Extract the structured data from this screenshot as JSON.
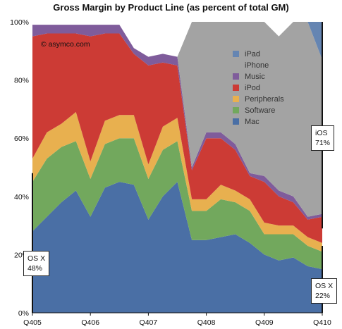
{
  "chart_data": {
    "type": "area",
    "stacked": true,
    "title": "Gross Margin by Product Line (as percent of total GM)",
    "ylim": [
      0,
      100
    ],
    "yticks": [
      0,
      20,
      40,
      60,
      80,
      100
    ],
    "ytick_labels": [
      "0%",
      "20%",
      "40%",
      "60%",
      "80%",
      "100%"
    ],
    "x_labels": [
      "Q405",
      "Q406",
      "Q407",
      "Q408",
      "Q409",
      "Q410"
    ],
    "x": [
      "Q405",
      "Q106",
      "Q206",
      "Q306",
      "Q406",
      "Q107",
      "Q207",
      "Q307",
      "Q407",
      "Q108",
      "Q208",
      "Q308",
      "Q408",
      "Q109",
      "Q209",
      "Q309",
      "Q409",
      "Q110",
      "Q210",
      "Q310",
      "Q410"
    ],
    "series": [
      {
        "name": "Mac",
        "color": "#4a6fa5",
        "values": [
          28,
          33,
          38,
          42,
          33,
          43,
          45,
          44,
          32,
          40,
          45,
          25,
          25,
          26,
          27,
          24,
          20,
          18,
          19,
          16,
          15
        ]
      },
      {
        "name": "Software",
        "color": "#72a85d",
        "values": [
          17,
          20,
          19,
          17,
          13,
          15,
          15,
          16,
          14,
          16,
          14,
          10,
          10,
          13,
          11,
          11,
          7,
          9,
          8,
          7,
          6
        ]
      },
      {
        "name": "Peripherals",
        "color": "#e8b04f",
        "values": [
          8,
          9,
          8,
          10,
          6,
          8,
          8,
          8,
          5,
          8,
          8,
          4,
          4,
          5,
          4,
          4,
          4,
          3,
          3,
          3,
          3
        ]
      },
      {
        "name": "iPod",
        "color": "#cc3b35",
        "values": [
          42,
          34,
          31,
          27,
          43,
          30,
          28,
          21,
          34,
          22,
          18,
          10,
          21,
          16,
          14,
          8,
          14,
          10,
          8,
          6,
          9
        ]
      },
      {
        "name": "Music",
        "color": "#7f5c9b",
        "values": [
          4,
          3,
          3,
          3,
          4,
          3,
          3,
          2,
          3,
          3,
          3,
          1,
          2,
          2,
          2,
          1,
          2,
          2,
          2,
          1,
          1
        ]
      },
      {
        "name": "iPhone",
        "color": "#a3a3a3",
        "values": [
          0,
          0,
          0,
          0,
          0,
          0,
          0,
          0,
          0,
          0,
          0,
          50,
          38,
          38,
          42,
          52,
          53,
          53,
          60,
          67,
          53
        ]
      },
      {
        "name": "iPad",
        "color": "#6585b2",
        "values": [
          0,
          0,
          0,
          0,
          0,
          0,
          0,
          0,
          0,
          0,
          0,
          0,
          0,
          0,
          0,
          0,
          0,
          0,
          0,
          0,
          13
        ]
      }
    ],
    "legend": {
      "placement": "top-right",
      "order": [
        "iPad",
        "iPhone",
        "Music",
        "iPod",
        "Peripherals",
        "Software",
        "Mac"
      ]
    },
    "annotations": [
      {
        "label": "OS X",
        "value": "48%"
      },
      {
        "label": "iOS",
        "value": "71%"
      },
      {
        "label": "OS X",
        "value": "22%"
      }
    ],
    "copyright": "© asymco.com"
  }
}
